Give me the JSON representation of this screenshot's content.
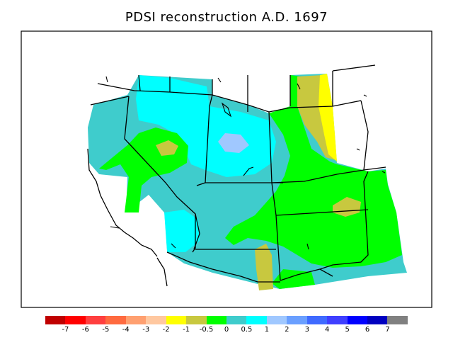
{
  "title": "PDSI reconstruction A.D. 1697",
  "legend": {
    "colors": [
      "#c00000",
      "#ff0000",
      "#ff3f3f",
      "#ff6a3f",
      "#ffa070",
      "#ffc8a0",
      "#ffff00",
      "#c8c83f",
      "#00ff00",
      "#3fcccc",
      "#00ffff",
      "#a0c8ff",
      "#6a9fff",
      "#3f6aff",
      "#3f3fff",
      "#0000ff",
      "#0000c0",
      "#808080"
    ],
    "tick_labels": [
      "-7",
      "-6",
      "-5",
      "-4",
      "-3",
      "-2",
      "-1",
      "-0.5",
      "0",
      "0.5",
      "1",
      "2",
      "3",
      "4",
      "5",
      "6",
      "7"
    ]
  },
  "chart_data": {
    "type": "heatmap",
    "title": "PDSI reconstruction A.D. 1697",
    "legend_breaks": [
      -7,
      -6,
      -5,
      -4,
      -3,
      -2,
      -1,
      -0.5,
      0,
      0.5,
      1,
      2,
      3,
      4,
      5,
      6,
      7
    ],
    "legend_placement": "bottom"
  }
}
